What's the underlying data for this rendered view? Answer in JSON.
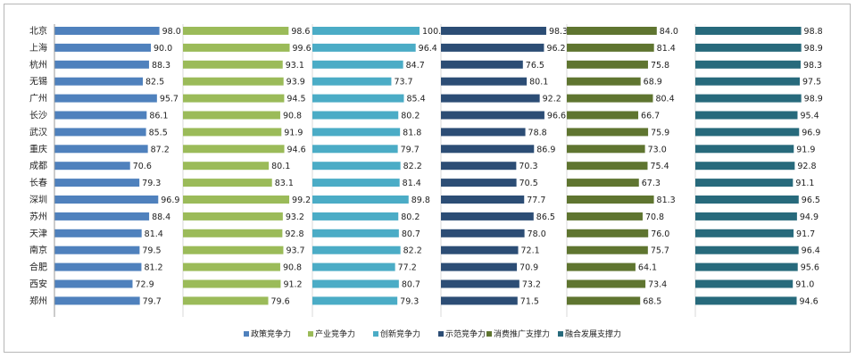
{
  "chart_data": {
    "type": "bar",
    "orientation": "horizontal",
    "layout": "small-multiples",
    "grid": false,
    "legend_position": "bottom",
    "categories": [
      "北京",
      "上海",
      "杭州",
      "无锡",
      "广州",
      "长沙",
      "武汉",
      "重庆",
      "成都",
      "长春",
      "深圳",
      "苏州",
      "天津",
      "南京",
      "合肥",
      "西安",
      "郑州"
    ],
    "series": [
      {
        "name": "政策竞争力",
        "color": "#4f81bd",
        "values": [
          98.0,
          90.0,
          88.3,
          82.5,
          95.7,
          86.1,
          85.5,
          87.2,
          70.6,
          79.3,
          96.9,
          88.4,
          81.4,
          79.5,
          81.2,
          72.9,
          79.7
        ]
      },
      {
        "name": "产业竞争力",
        "color": "#9bbb59",
        "values": [
          98.6,
          99.6,
          93.1,
          93.9,
          94.5,
          90.8,
          91.9,
          94.6,
          80.1,
          83.1,
          99.2,
          93.2,
          92.8,
          93.7,
          90.8,
          91.2,
          79.6
        ]
      },
      {
        "name": "创新竞争力",
        "color": "#4bacc6",
        "values": [
          100.0,
          96.4,
          84.7,
          73.7,
          85.4,
          80.2,
          81.8,
          79.7,
          82.2,
          81.4,
          89.8,
          80.2,
          80.7,
          82.2,
          77.2,
          80.7,
          79.3
        ]
      },
      {
        "name": "示范竞争力",
        "color": "#2c4d75",
        "values": [
          98.3,
          96.2,
          76.5,
          80.1,
          92.2,
          96.6,
          78.8,
          86.9,
          70.3,
          70.5,
          77.7,
          86.5,
          78.0,
          72.1,
          70.9,
          73.2,
          71.5
        ]
      },
      {
        "name": "消费推广支撑力",
        "color": "#5f7530",
        "values": [
          84.0,
          81.4,
          75.8,
          68.9,
          80.4,
          66.7,
          75.9,
          73.0,
          75.4,
          67.3,
          81.3,
          70.8,
          76.0,
          75.7,
          64.1,
          73.4,
          68.5
        ]
      },
      {
        "name": "融合发展支撑力",
        "color": "#276a7c",
        "values": [
          98.8,
          98.9,
          98.3,
          97.5,
          98.9,
          95.4,
          96.9,
          91.9,
          92.8,
          91.1,
          96.5,
          94.9,
          91.7,
          96.4,
          95.6,
          91.0,
          94.6
        ]
      }
    ]
  }
}
